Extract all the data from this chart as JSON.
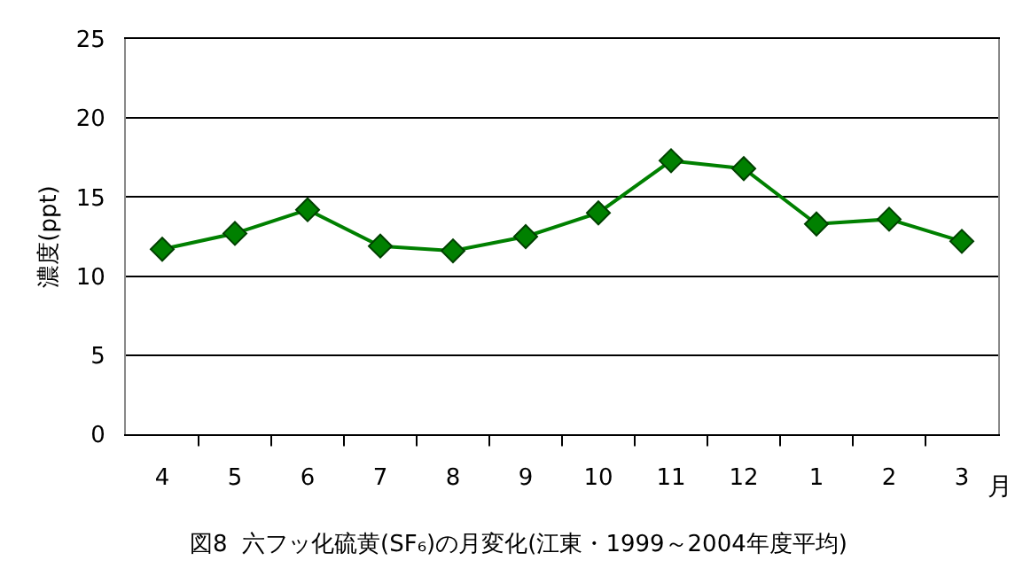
{
  "chart_data": {
    "type": "line",
    "title": "図8  六フッ化硫黄(SF₆)の月変化(江東・1999～2004年度平均)",
    "xlabel": "月",
    "ylabel": "濃度(ppt)",
    "categories": [
      "4",
      "5",
      "6",
      "7",
      "8",
      "9",
      "10",
      "11",
      "12",
      "1",
      "2",
      "3"
    ],
    "series": [
      {
        "color": "#008000",
        "values": [
          11.7,
          12.7,
          14.2,
          11.9,
          11.6,
          12.5,
          14.0,
          17.3,
          16.8,
          13.3,
          13.6,
          12.2
        ]
      }
    ],
    "ylim": [
      0,
      25
    ],
    "yticks": [
      0,
      5,
      10,
      15,
      20,
      25
    ],
    "grid": "y",
    "marker": "diamond",
    "line_style": "solid"
  }
}
